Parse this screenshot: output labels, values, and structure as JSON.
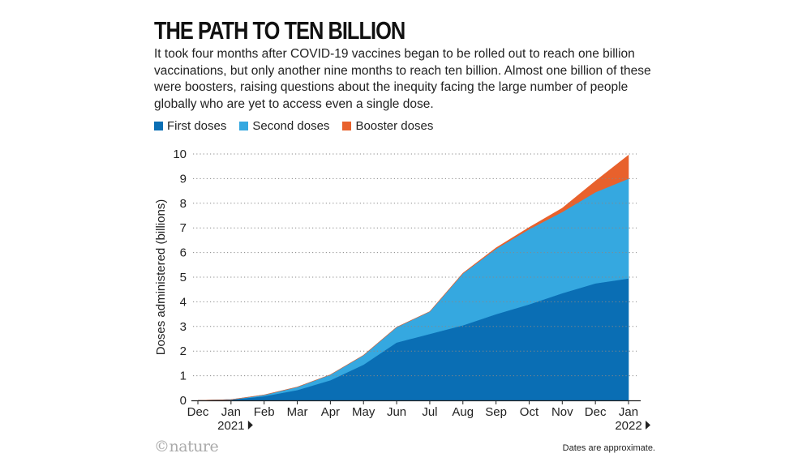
{
  "header": {
    "title": "THE PATH TO TEN BILLION",
    "subtitle": "It took four months after COVID-19 vaccines began to be rolled out to reach one billion vaccinations, but only another nine months to reach ten billion. Almost one billion of these were boosters, raising questions about the inequity facing the large number of people globally who are yet to access even a single dose."
  },
  "footer": {
    "logo": "©nature",
    "note": "Dates are approximate."
  },
  "colors": {
    "first": "#0a6eb4",
    "second": "#35a8e0",
    "booster": "#e8612c",
    "grid": "#888888",
    "axis": "#222222"
  },
  "chart_data": {
    "type": "area",
    "stacked": true,
    "title": "THE PATH TO TEN BILLION",
    "ylabel": "Doses administered (billions)",
    "xlabel": "",
    "ylim": [
      0,
      10
    ],
    "yticks": [
      0,
      1,
      2,
      3,
      4,
      5,
      6,
      7,
      8,
      9,
      10
    ],
    "grid": true,
    "legend_position": "top-left",
    "x_tick_labels": [
      "Dec",
      "Jan",
      "Feb",
      "Mar",
      "Apr",
      "May",
      "Jun",
      "Jul",
      "Aug",
      "Sep",
      "Oct",
      "Nov",
      "Dec",
      "Jan"
    ],
    "year_labels": [
      {
        "label": "2021",
        "at_month": "Jan"
      },
      {
        "label": "2022",
        "at_month": "Jan"
      }
    ],
    "x": [
      "Dec 2020",
      "Jan 2021",
      "Feb 2021",
      "Mar 2021",
      "Apr 2021",
      "May 2021",
      "Jun 2021",
      "Jul 2021",
      "Aug 2021",
      "Sep 2021",
      "Oct 2021",
      "Nov 2021",
      "Dec 2021",
      "Jan 2022"
    ],
    "series": [
      {
        "name": "First doses",
        "color": "#0a6eb4",
        "values": [
          0.0,
          0.03,
          0.17,
          0.42,
          0.82,
          1.45,
          2.35,
          2.7,
          3.05,
          3.5,
          3.9,
          4.35,
          4.75,
          4.95
        ]
      },
      {
        "name": "Second doses",
        "color": "#35a8e0",
        "values": [
          0.0,
          0.0,
          0.05,
          0.12,
          0.22,
          0.38,
          0.62,
          0.9,
          2.1,
          2.65,
          3.05,
          3.3,
          3.7,
          4.05
        ]
      },
      {
        "name": "Booster doses",
        "color": "#e8612c",
        "values": [
          0.0,
          0.0,
          0.0,
          0.0,
          0.0,
          0.0,
          0.0,
          0.0,
          0.01,
          0.04,
          0.07,
          0.15,
          0.45,
          0.95
        ]
      }
    ]
  }
}
